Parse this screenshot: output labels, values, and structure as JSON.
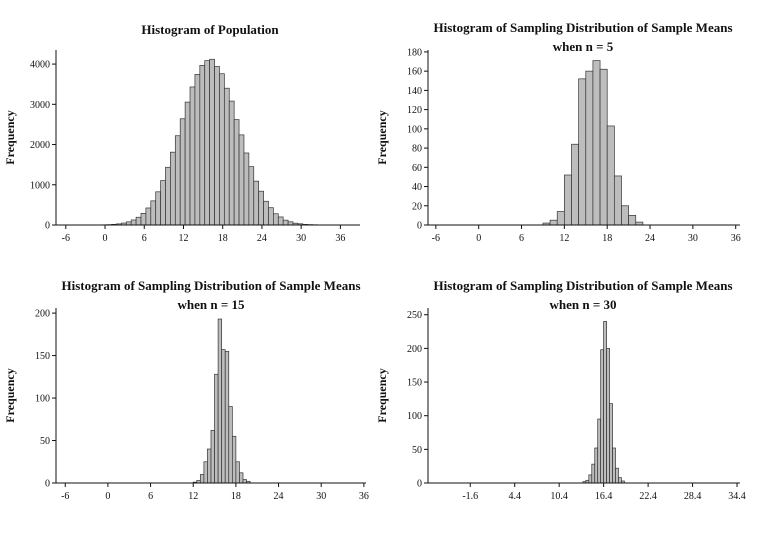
{
  "chart_data": [
    {
      "type": "histogram",
      "title": "Histogram of Population",
      "ylabel": "Frequency",
      "bins": [
        -2,
        -1.25,
        -0.5,
        0.25,
        1,
        1.75,
        2.5,
        3.25,
        4,
        4.75,
        5.5,
        6.25,
        7,
        7.75,
        8.5,
        9.25,
        10,
        10.75,
        11.5,
        12.25,
        13,
        13.75,
        14.5,
        15.25,
        16,
        16.75,
        17.5,
        18.25,
        19,
        19.75,
        20.5,
        21.25,
        22,
        22.75,
        23.5,
        24.25,
        25,
        25.75,
        26.5,
        27.25,
        28,
        28.75,
        29.5,
        30.25,
        31,
        31.75,
        32.5,
        33.25,
        34
      ],
      "values": [
        1,
        3,
        5,
        9,
        16,
        28,
        48,
        78,
        125,
        193,
        290,
        423,
        600,
        825,
        1104,
        1435,
        1810,
        2219,
        2641,
        3055,
        3431,
        3743,
        3968,
        4085,
        4120,
        3940,
        3760,
        3400,
        3080,
        2620,
        2240,
        1790,
        1450,
        1090,
        840,
        590,
        430,
        280,
        200,
        120,
        80,
        45,
        30,
        15,
        10,
        6,
        2,
        1
      ],
      "color": "#bdbdbd",
      "xlim": [
        -7.5,
        39
      ],
      "xticks": [
        -6,
        0,
        6,
        12,
        18,
        24,
        30,
        36
      ],
      "ylim": [
        0,
        4350
      ],
      "yticks": [
        0,
        1000,
        2000,
        3000,
        4000
      ]
    },
    {
      "type": "histogram",
      "title": "Histogram of Sampling Distribution of Sample Means when n = 5",
      "ylabel": "Frequency",
      "bins": [
        9,
        10,
        11,
        12,
        13,
        14,
        15,
        16,
        17,
        18,
        19,
        20,
        21,
        22,
        23
      ],
      "values": [
        2,
        5,
        14,
        52,
        84,
        152,
        160,
        171,
        162,
        103,
        51,
        20,
        10,
        3
      ],
      "color": "#bdbdbd",
      "xlim": [
        -7.1,
        36.6
      ],
      "xticks": [
        -6,
        0,
        6,
        12,
        18,
        24,
        30,
        36
      ],
      "ylim": [
        0,
        182
      ],
      "yticks": [
        0,
        20,
        40,
        60,
        80,
        100,
        120,
        140,
        160,
        180
      ]
    },
    {
      "type": "histogram",
      "title": "Histogram of Sampling Distribution of Sample Means when n = 15",
      "ylabel": "Frequency",
      "bins": [
        12,
        12.5,
        13,
        13.5,
        14,
        14.5,
        15,
        15.5,
        16,
        16.5,
        17,
        17.5,
        18,
        18.5,
        19,
        19.5,
        20
      ],
      "values": [
        1,
        3,
        10,
        25,
        40,
        62,
        128,
        193,
        157,
        155,
        90,
        55,
        25,
        12,
        4,
        2
      ],
      "color": "#bdbdbd",
      "xlim": [
        -7.3,
        36.3
      ],
      "xticks": [
        -6,
        0,
        6,
        12,
        18,
        24,
        30,
        36
      ],
      "ylim": [
        0,
        206
      ],
      "yticks": [
        0,
        50,
        100,
        150,
        200
      ]
    },
    {
      "type": "histogram",
      "title": "Histogram of Sampling Distribution of Sample Means when n = 30",
      "ylabel": "Frequency",
      "bins": [
        13.6,
        14,
        14.4,
        14.8,
        15.2,
        15.6,
        16,
        16.4,
        16.8,
        17.2,
        17.6,
        18,
        18.4,
        18.8,
        19.2
      ],
      "values": [
        2,
        4,
        12,
        28,
        52,
        95,
        198,
        240,
        200,
        118,
        52,
        22,
        8,
        3
      ],
      "color": "#bdbdbd",
      "xlim": [
        -7.3,
        34.8
      ],
      "xticks": [
        -1.6,
        4.4,
        10.4,
        16.4,
        22.4,
        28.4,
        34.4
      ],
      "ylim": [
        0,
        260
      ],
      "yticks": [
        0,
        50,
        100,
        150,
        200,
        250
      ]
    }
  ]
}
